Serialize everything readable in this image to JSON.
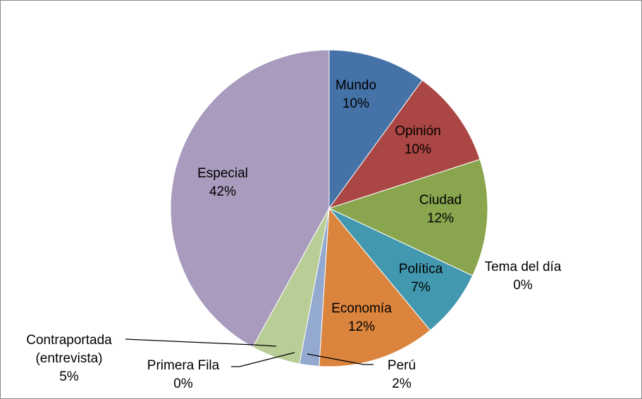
{
  "chart_data": {
    "type": "pie",
    "categories": [
      "Mundo",
      "Opinión",
      "Ciudad",
      "Tema del día",
      "Política",
      "Economía",
      "Perú",
      "Primera Fila",
      "Contraportada (entrevista)",
      "Especial"
    ],
    "values": [
      10,
      10,
      12,
      0,
      7,
      12,
      2,
      0,
      5,
      42
    ],
    "value_labels": [
      "10%",
      "10%",
      "12%",
      "0%",
      "7%",
      "12%",
      "2%",
      "0%",
      "5%",
      "42%"
    ],
    "colors": [
      "#4572a7",
      "#aa4643",
      "#89a54e",
      "#71588f",
      "#4198af",
      "#db843d",
      "#93a9cf",
      "#d09392",
      "#b9cd96",
      "#a99bbd"
    ]
  }
}
